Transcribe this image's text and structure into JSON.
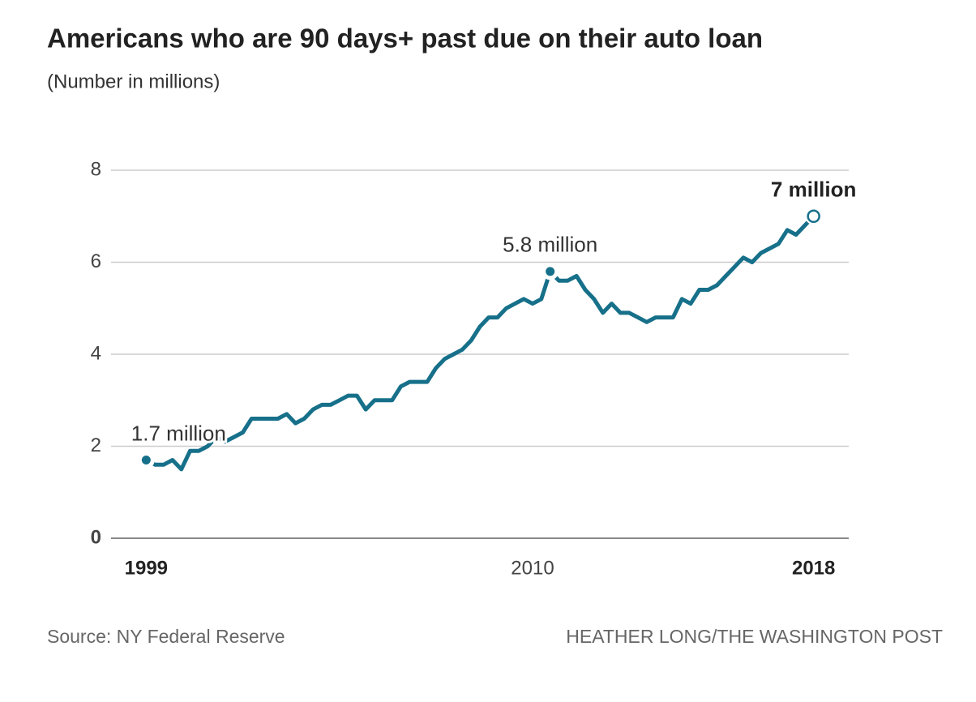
{
  "chart_data": {
    "type": "line",
    "title": "Americans who are 90 days+ past due on their auto loan",
    "subtitle": "(Number in millions)",
    "x": [
      1999,
      1999.25,
      1999.5,
      1999.75,
      2000,
      2000.25,
      2000.5,
      2000.75,
      2001,
      2001.25,
      2001.5,
      2001.75,
      2002,
      2002.25,
      2002.5,
      2002.75,
      2003,
      2003.25,
      2003.5,
      2003.75,
      2004,
      2004.25,
      2004.5,
      2004.75,
      2005,
      2005.25,
      2005.5,
      2005.75,
      2006,
      2006.25,
      2006.5,
      2006.75,
      2007,
      2007.25,
      2007.5,
      2007.75,
      2008,
      2008.25,
      2008.5,
      2008.75,
      2009,
      2009.25,
      2009.5,
      2009.75,
      2010,
      2010.25,
      2010.5,
      2010.75,
      2011,
      2011.25,
      2011.5,
      2011.75,
      2012,
      2012.25,
      2012.5,
      2012.75,
      2013,
      2013.25,
      2013.5,
      2013.75,
      2014,
      2014.25,
      2014.5,
      2014.75,
      2015,
      2015.25,
      2015.5,
      2015.75,
      2016,
      2016.25,
      2016.5,
      2016.75,
      2017,
      2017.25,
      2017.5,
      2017.75,
      2018
    ],
    "series": [
      {
        "name": "Americans 90+ days past due",
        "color": "#17708a",
        "values": [
          1.7,
          1.6,
          1.6,
          1.7,
          1.5,
          1.9,
          1.9,
          2.0,
          2.2,
          2.1,
          2.2,
          2.3,
          2.6,
          2.6,
          2.6,
          2.6,
          2.7,
          2.5,
          2.6,
          2.8,
          2.9,
          2.9,
          3.0,
          3.1,
          3.1,
          2.8,
          3.0,
          3.0,
          3.0,
          3.3,
          3.4,
          3.4,
          3.4,
          3.7,
          3.9,
          4.0,
          4.1,
          4.3,
          4.6,
          4.8,
          4.8,
          5.0,
          5.1,
          5.2,
          5.1,
          5.2,
          5.8,
          5.6,
          5.6,
          5.7,
          5.4,
          5.2,
          4.9,
          5.1,
          4.9,
          4.9,
          4.8,
          4.7,
          4.8,
          4.8,
          4.8,
          5.2,
          5.1,
          5.4,
          5.4,
          5.5,
          5.7,
          5.9,
          6.1,
          6.0,
          6.2,
          6.3,
          6.4,
          6.7,
          6.6,
          6.8,
          7.0
        ]
      }
    ],
    "annotations": [
      {
        "text": "1.7 million",
        "x": 1999,
        "y": 1.7
      },
      {
        "text": "5.8 million",
        "x": 2010.5,
        "y": 5.8
      },
      {
        "text": "7 million",
        "x": 2018,
        "y": 7.0
      }
    ],
    "xlim": [
      1998,
      2019
    ],
    "xticks": [
      1999,
      2010,
      2018
    ],
    "ylim": [
      0,
      8
    ],
    "yticks": [
      0,
      2,
      4,
      6,
      8
    ],
    "grid": true,
    "source": "Source: NY Federal Reserve",
    "credit": "HEATHER LONG/THE WASHINGTON POST"
  }
}
